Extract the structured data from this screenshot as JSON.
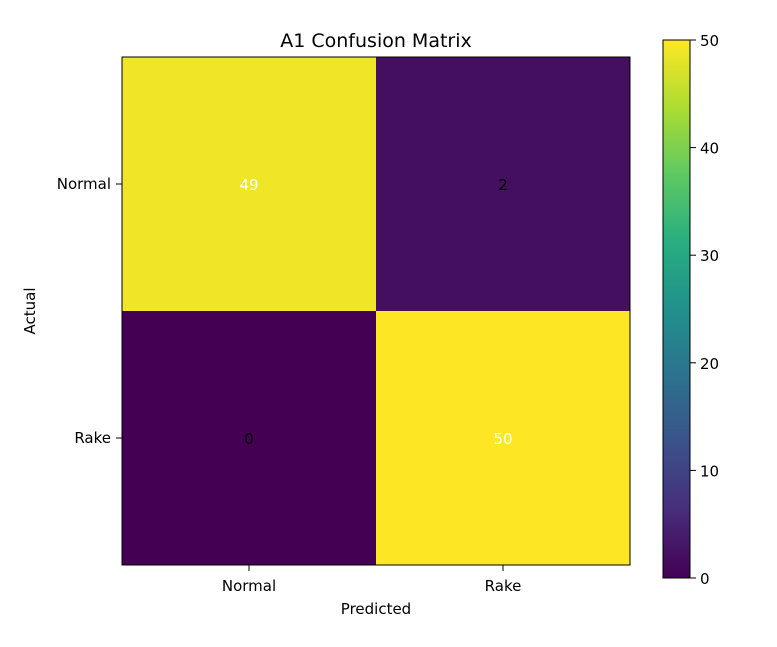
{
  "chart_data": {
    "type": "heatmap",
    "title": "A1 Confusion Matrix",
    "xlabel": "Predicted",
    "ylabel": "Actual",
    "x_categories": [
      "Normal",
      "Rake"
    ],
    "y_categories": [
      "Normal",
      "Rake"
    ],
    "matrix": [
      [
        49,
        2
      ],
      [
        0,
        50
      ]
    ],
    "colormap": "viridis",
    "color_range": [
      0,
      50
    ],
    "colorbar": {
      "ticks": [
        0,
        10,
        20,
        30,
        40,
        50
      ],
      "tick_labels": [
        "0",
        "10",
        "20",
        "30",
        "40",
        "50"
      ]
    },
    "cell_text_colors": {
      "high": "#ffffff",
      "low": "#000000"
    },
    "grid": false
  }
}
